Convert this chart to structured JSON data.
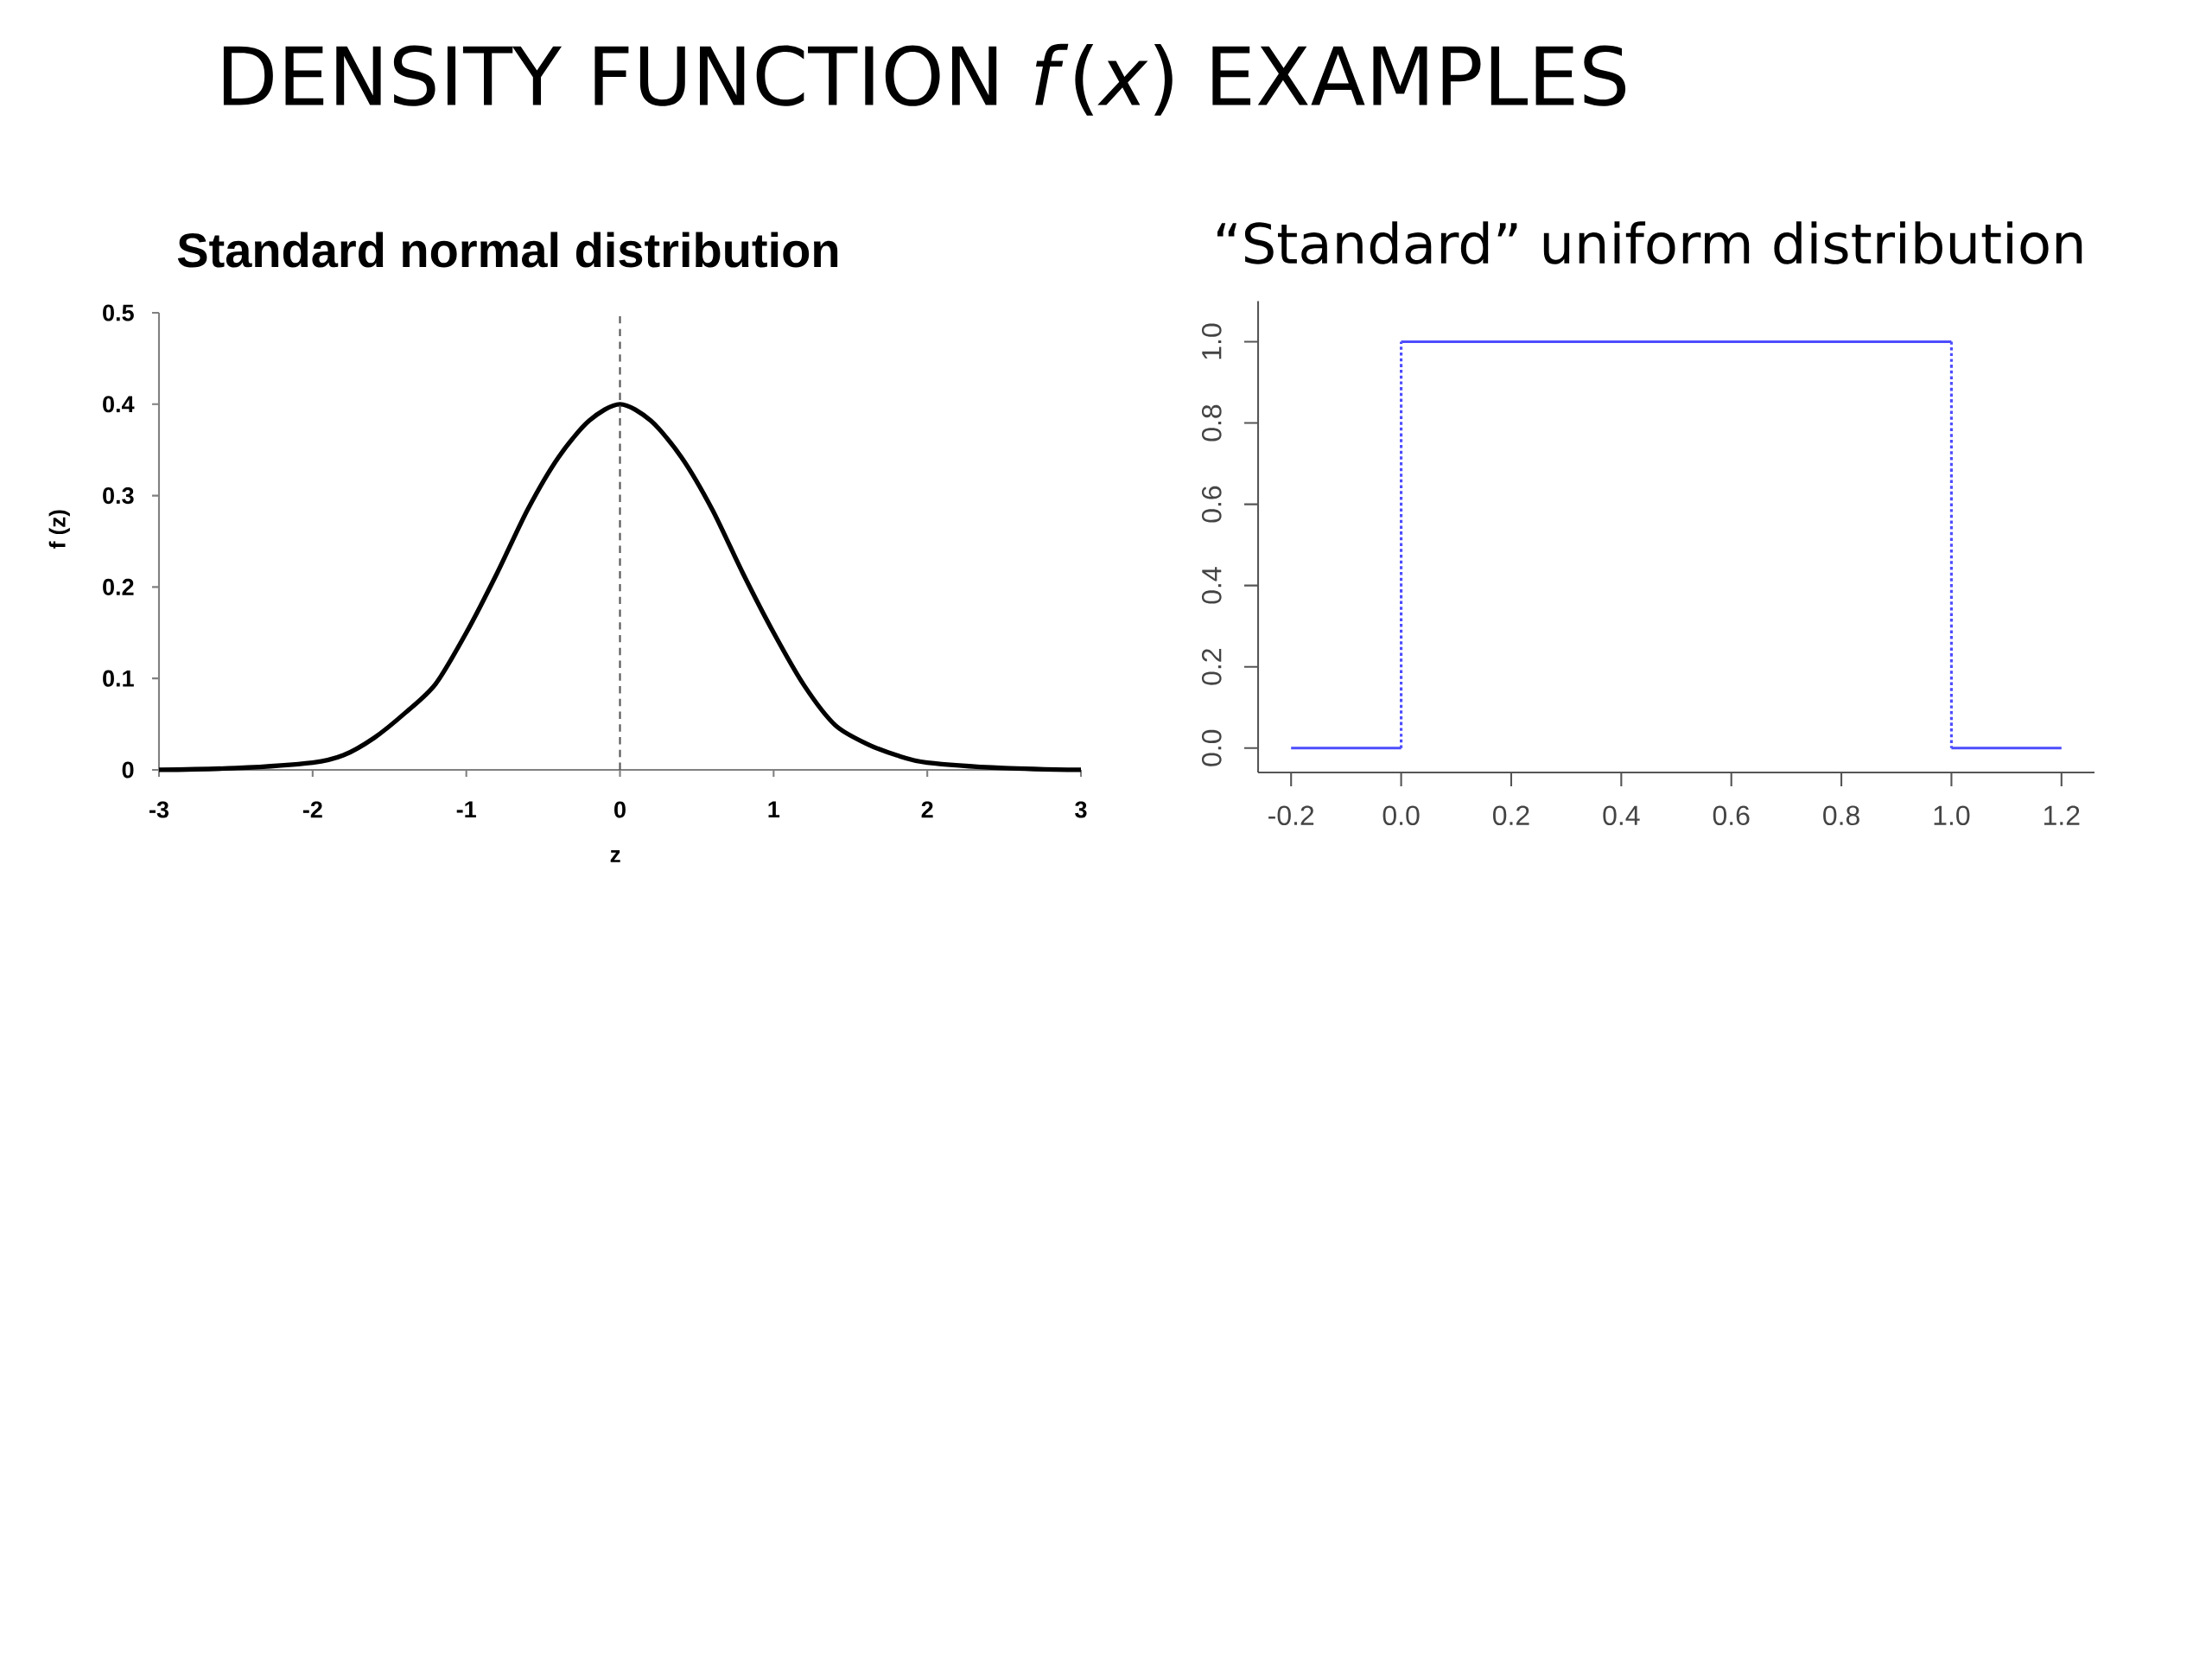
{
  "chart_data": [
    {
      "type": "line",
      "title": "DENSITY FUNCTION *f*(*x*) EXAMPLES",
      "subtitle": "Standard normal distribution",
      "xlabel": "z",
      "ylabel": "f (z)",
      "x": [
        -3,
        -2.5,
        -2,
        -1.8,
        -1.6,
        -1.4,
        -1.2,
        -1,
        -0.8,
        -0.6,
        -0.4,
        -0.2,
        0,
        0.2,
        0.4,
        0.6,
        0.8,
        1,
        1.2,
        1.4,
        1.6,
        1.8,
        2,
        2.5,
        3
      ],
      "series": [
        {
          "color": "#000000",
          "values": [
            0,
            0.002,
            0.008,
            0.016,
            0.035,
            0.062,
            0.094,
            0.15,
            0.215,
            0.285,
            0.342,
            0.382,
            0.4,
            0.382,
            0.342,
            0.285,
            0.215,
            0.15,
            0.092,
            0.049,
            0.029,
            0.016,
            0.008,
            0.002,
            0
          ]
        }
      ],
      "xlim": [
        -3,
        3
      ],
      "xticks": [
        -3,
        -2,
        -1,
        0,
        1,
        2,
        3
      ],
      "ylim": [
        0,
        0.5
      ],
      "yticks": [
        0,
        0.1,
        0.2,
        0.3,
        0.4,
        0.5
      ],
      "ref_lines": [
        {
          "axis": "x",
          "value": 0,
          "color": "#555555",
          "line_style": "dashed"
        }
      ]
    },
    {
      "type": "line",
      "title": "“Standard” uniform distribution",
      "series": [
        {
          "color": "#4d4dff",
          "line_style": "solid",
          "x": [
            -0.2,
            0
          ],
          "values": [
            0,
            0
          ]
        },
        {
          "color": "#4d4dff",
          "line_style": "dotted",
          "x": [
            0,
            0
          ],
          "values": [
            0,
            1
          ]
        },
        {
          "color": "#4d4dff",
          "line_style": "solid",
          "x": [
            0,
            1
          ],
          "values": [
            1,
            1
          ]
        },
        {
          "color": "#4d4dff",
          "line_style": "dotted",
          "x": [
            1,
            1
          ],
          "values": [
            1,
            0
          ]
        },
        {
          "color": "#4d4dff",
          "line_style": "solid",
          "x": [
            1,
            1.2
          ],
          "values": [
            0,
            0
          ]
        }
      ],
      "xlim": [
        -0.26,
        1.26
      ],
      "xticks": [
        -0.2,
        {
          "value": 0,
          "label": "0.0"
        },
        0.2,
        0.4,
        0.6,
        0.8,
        {
          "value": 1,
          "label": "1.0"
        },
        1.2
      ],
      "ylim": [
        -0.06,
        1.1
      ],
      "yticks": [
        {
          "value": 0,
          "label": "0.0"
        },
        0.2,
        0.4,
        0.6,
        0.8,
        {
          "value": 1,
          "label": "1.0"
        }
      ]
    }
  ]
}
